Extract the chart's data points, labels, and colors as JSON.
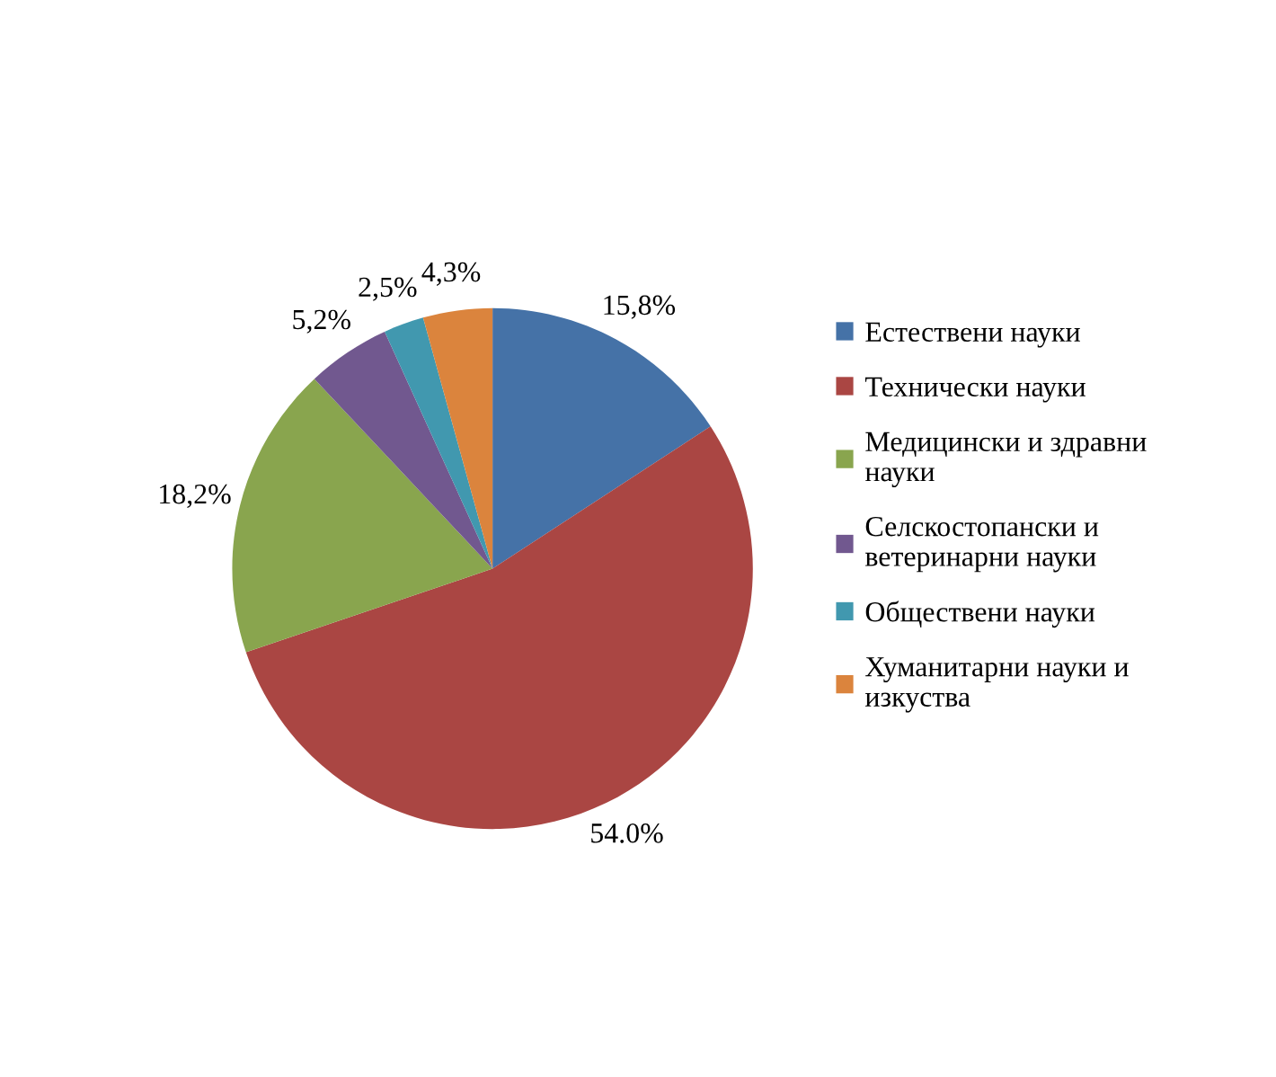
{
  "chart_data": {
    "type": "pie",
    "categories": [
      "Естествени науки",
      "Технически науки",
      "Медицински и здравни науки",
      "Селскостопански и ветеринарни науки",
      "Обществени науки",
      "Хуманитарни науки и изкуства"
    ],
    "values": [
      15.8,
      54.0,
      18.2,
      5.2,
      2.5,
      4.3
    ],
    "value_labels": [
      "15,8%",
      "54.0%",
      "18,2%",
      "5,2%",
      "2,5%",
      "4,3%"
    ],
    "colors": [
      "#4572a7",
      "#aa4643",
      "#89a54e",
      "#71588f",
      "#4198af",
      "#db843d"
    ],
    "legend": "right"
  }
}
